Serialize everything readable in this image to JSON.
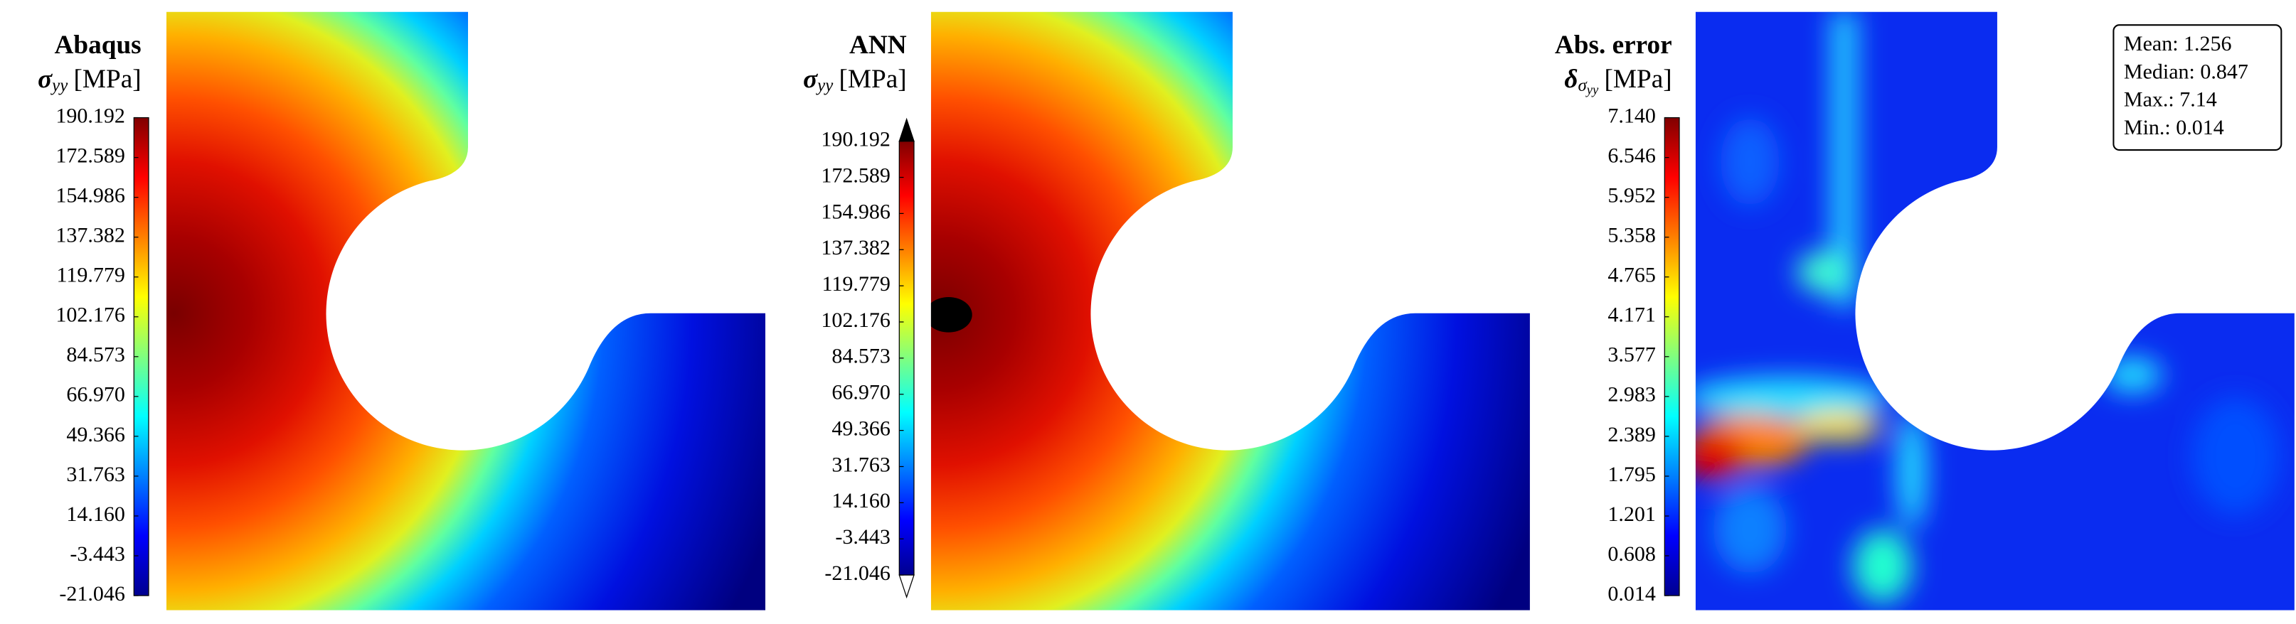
{
  "panels": [
    {
      "title": "Abaqus",
      "symbol": "σ",
      "subscript": "yy",
      "unit": "[MPa]",
      "colorbar": {
        "range": [
          -21.046,
          190.192
        ],
        "ticks": [
          190.192,
          172.589,
          154.986,
          137.382,
          119.779,
          102.176,
          84.573,
          {
            "value": 66.97,
            "label": "66.970"
          },
          49.366,
          31.763,
          {
            "value": 14.16,
            "label": "14.160"
          },
          -3.443,
          -21.046
        ]
      }
    },
    {
      "title": "ANN",
      "symbol": "σ",
      "subscript": "yy",
      "unit": "[MPa]",
      "colorbar": {
        "range": [
          -21.046,
          190.192
        ],
        "ticks": [
          190.192,
          172.589,
          154.986,
          137.382,
          119.779,
          102.176,
          84.573,
          {
            "value": 66.97,
            "label": "66.970"
          },
          49.366,
          31.763,
          {
            "value": 14.16,
            "label": "14.160"
          },
          -3.443,
          -21.046
        ]
      }
    },
    {
      "title": "Abs. error",
      "symbol": "δ",
      "subscript": "σ",
      "subsubscript": "yy",
      "unit": "[MPa]",
      "colorbar": {
        "range": [
          0.014,
          7.14
        ],
        "ticks": [
          {
            "value": 7.14,
            "label": "7.140"
          },
          6.546,
          5.952,
          5.358,
          4.765,
          4.171,
          3.577,
          2.983,
          2.389,
          1.795,
          1.201,
          0.608,
          0.014
        ]
      }
    }
  ],
  "stats": [
    "Mean: 1.256",
    "Median: 0.847",
    "Max.: 7.14",
    "Min.: 0.014"
  ]
}
